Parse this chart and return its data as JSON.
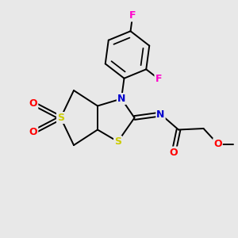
{
  "background_color": "#e8e8e8",
  "figsize": [
    3.0,
    3.0
  ],
  "dpi": 100,
  "atom_colors": {
    "C": "#000000",
    "N": "#0000cd",
    "S": "#cccc00",
    "O": "#ff0000",
    "F": "#ff00cc",
    "H": "#000000"
  },
  "bond_color": "#000000",
  "bond_width": 1.4
}
